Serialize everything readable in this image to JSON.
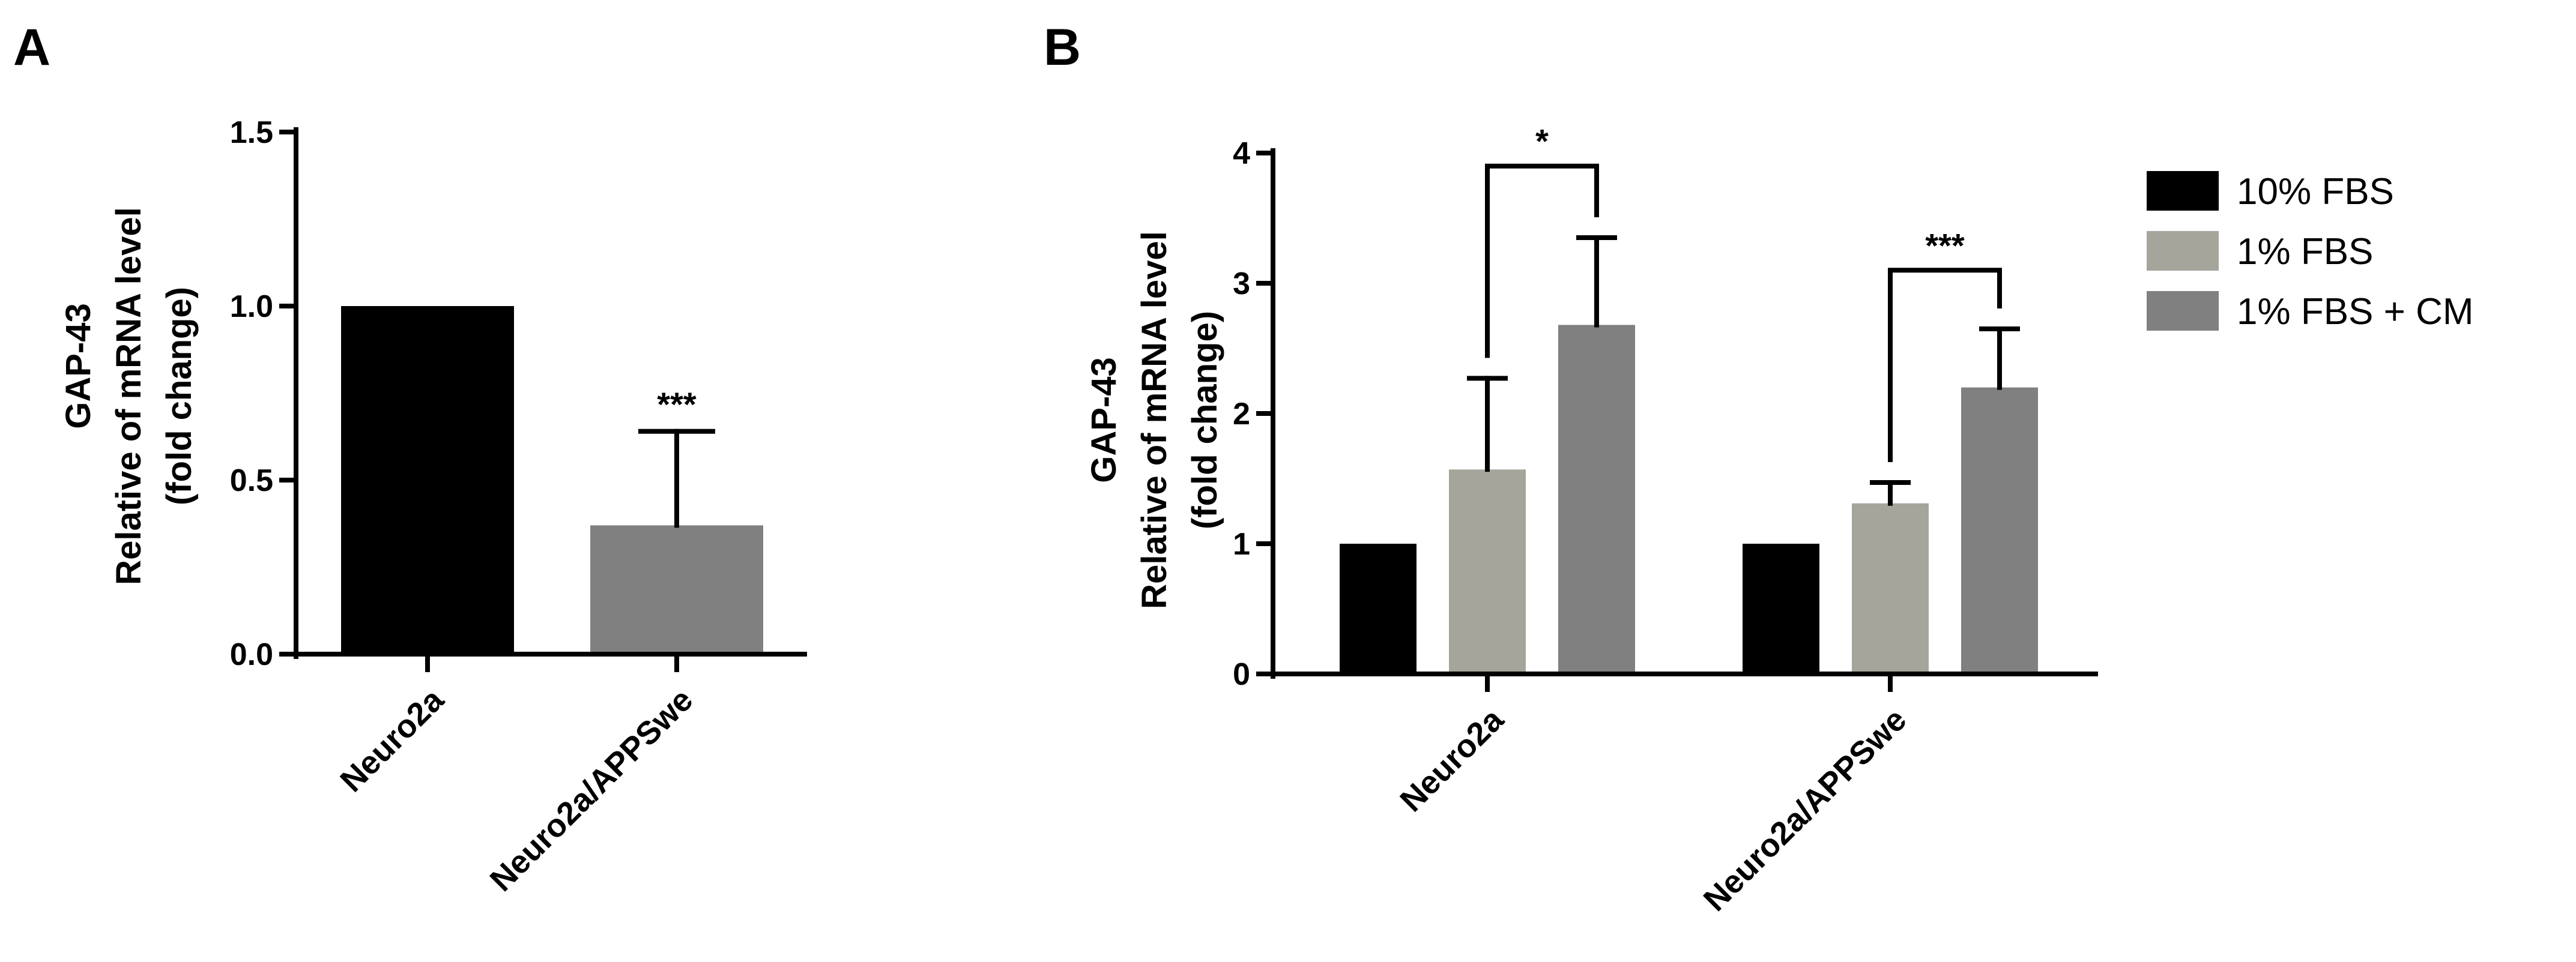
{
  "chart_data": [
    {
      "panel": "A",
      "type": "bar",
      "title": "",
      "ylabel_lines": [
        "GAP-43",
        "Relative of mRNA level",
        "(fold change)"
      ],
      "xlabel": "",
      "ylim": [
        0,
        1.5
      ],
      "ticks": [
        "0.0",
        "0.5",
        "1.0",
        "1.5"
      ],
      "tick_values": [
        0,
        0.5,
        1.0,
        1.5
      ],
      "categories": [
        "Neuro2a",
        "Neuro2a/APPSwe"
      ],
      "values": [
        1.0,
        0.37
      ],
      "errors": [
        0,
        0.27
      ],
      "colors": [
        "#000000",
        "#808080"
      ],
      "annotations": [
        {
          "category": "Neuro2a/APPSwe",
          "text": "***"
        }
      ]
    },
    {
      "panel": "B",
      "type": "bar",
      "title": "",
      "ylabel_lines": [
        "GAP-43",
        "Relative of mRNA level",
        "(fold change)"
      ],
      "xlabel": "",
      "ylim": [
        0,
        4
      ],
      "ticks": [
        "0",
        "1",
        "2",
        "3",
        "4"
      ],
      "tick_values": [
        0,
        1,
        2,
        3,
        4
      ],
      "categories": [
        "Neuro2a",
        "Neuro2a/APPSwe"
      ],
      "series": [
        {
          "name": "10% FBS",
          "color": "#000000",
          "values": [
            1.0,
            1.0
          ],
          "errors": [
            0,
            0
          ]
        },
        {
          "name": "1% FBS",
          "color": "#a5a59c",
          "values": [
            1.57,
            1.31
          ],
          "errors": [
            0.7,
            0.16
          ]
        },
        {
          "name": "1% FBS + CM",
          "color": "#808080",
          "values": [
            2.68,
            2.2
          ],
          "errors": [
            0.67,
            0.45
          ]
        }
      ],
      "annotations": [
        {
          "category": "Neuro2a",
          "from_series": "1% FBS",
          "to_series": "1% FBS + CM",
          "text": "*",
          "bracket_value": 3.9
        },
        {
          "category": "Neuro2a/APPSwe",
          "from_series": "1% FBS",
          "to_series": "1% FBS + CM",
          "text": "***",
          "bracket_value": 3.1
        }
      ]
    }
  ]
}
